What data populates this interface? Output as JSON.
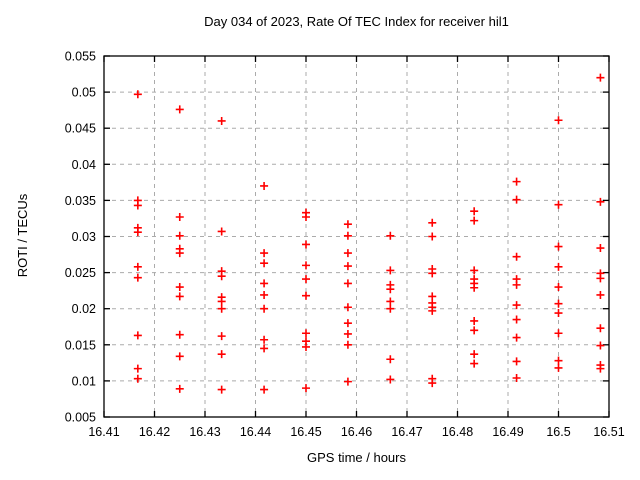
{
  "window": {
    "background": "#ffffff"
  },
  "chart_data": {
    "type": "scatter",
    "title": "Day 034 of 2023, Rate Of TEC Index for receiver hil1",
    "xlabel": "GPS time / hours",
    "ylabel": "ROTI / TECUs",
    "xlim": [
      16.41,
      16.51
    ],
    "ylim": [
      0.005,
      0.055
    ],
    "xticks": [
      16.41,
      16.42,
      16.43,
      16.44,
      16.45,
      16.46,
      16.47,
      16.48,
      16.49,
      16.5,
      16.51
    ],
    "xtick_labels": [
      "16.41",
      "16.42",
      "16.43",
      "16.44",
      "16.45",
      "16.46",
      "16.47",
      "16.48",
      "16.49",
      "16.5",
      "16.51"
    ],
    "yticks": [
      0.005,
      0.01,
      0.015,
      0.02,
      0.025,
      0.03,
      0.035,
      0.04,
      0.045,
      0.05,
      0.055
    ],
    "ytick_labels": [
      "0.005",
      "0.01",
      "0.015",
      "0.02",
      "0.025",
      "0.03",
      "0.035",
      "0.04",
      "0.045",
      "0.05",
      "0.055"
    ],
    "grid": true,
    "grid_style": "dashed",
    "grid_color": "#ababab",
    "border_color": "#000000",
    "legend": "none",
    "marker": {
      "shape": "plus",
      "color": "#ff0000",
      "half_size": 4,
      "stroke_width": 1.6
    },
    "series": [
      {
        "name": "ROTI",
        "points": [
          [
            16.4167,
            0.0497
          ],
          [
            16.4167,
            0.035
          ],
          [
            16.4167,
            0.0343
          ],
          [
            16.4167,
            0.0312
          ],
          [
            16.4167,
            0.0306
          ],
          [
            16.4167,
            0.0258
          ],
          [
            16.4167,
            0.0243
          ],
          [
            16.4167,
            0.0163
          ],
          [
            16.4167,
            0.0117
          ],
          [
            16.4167,
            0.0103
          ],
          [
            16.425,
            0.0476
          ],
          [
            16.425,
            0.0327
          ],
          [
            16.425,
            0.0301
          ],
          [
            16.425,
            0.0283
          ],
          [
            16.425,
            0.0277
          ],
          [
            16.425,
            0.023
          ],
          [
            16.425,
            0.0217
          ],
          [
            16.425,
            0.0164
          ],
          [
            16.425,
            0.0134
          ],
          [
            16.425,
            0.0089
          ],
          [
            16.4333,
            0.046
          ],
          [
            16.4333,
            0.0307
          ],
          [
            16.4333,
            0.0252
          ],
          [
            16.4333,
            0.0245
          ],
          [
            16.4333,
            0.0216
          ],
          [
            16.4333,
            0.021
          ],
          [
            16.4333,
            0.02
          ],
          [
            16.4333,
            0.0162
          ],
          [
            16.4333,
            0.0137
          ],
          [
            16.4333,
            0.0088
          ],
          [
            16.4417,
            0.037
          ],
          [
            16.4417,
            0.0277
          ],
          [
            16.4417,
            0.0263
          ],
          [
            16.4417,
            0.0235
          ],
          [
            16.4417,
            0.0219
          ],
          [
            16.4417,
            0.02
          ],
          [
            16.4417,
            0.0157
          ],
          [
            16.4417,
            0.0145
          ],
          [
            16.4417,
            0.0088
          ],
          [
            16.45,
            0.0333
          ],
          [
            16.45,
            0.0327
          ],
          [
            16.45,
            0.0289
          ],
          [
            16.45,
            0.026
          ],
          [
            16.45,
            0.0241
          ],
          [
            16.45,
            0.0218
          ],
          [
            16.45,
            0.0166
          ],
          [
            16.45,
            0.0155
          ],
          [
            16.45,
            0.0147
          ],
          [
            16.45,
            0.009
          ],
          [
            16.4583,
            0.0317
          ],
          [
            16.4583,
            0.0301
          ],
          [
            16.4583,
            0.0277
          ],
          [
            16.4583,
            0.0259
          ],
          [
            16.4583,
            0.0235
          ],
          [
            16.4583,
            0.0202
          ],
          [
            16.4583,
            0.018
          ],
          [
            16.4583,
            0.0165
          ],
          [
            16.4583,
            0.015
          ],
          [
            16.4583,
            0.0099
          ],
          [
            16.4667,
            0.0301
          ],
          [
            16.4667,
            0.0253
          ],
          [
            16.4667,
            0.0233
          ],
          [
            16.4667,
            0.0227
          ],
          [
            16.4667,
            0.021
          ],
          [
            16.4667,
            0.02
          ],
          [
            16.4667,
            0.013
          ],
          [
            16.4667,
            0.0102
          ],
          [
            16.475,
            0.0319
          ],
          [
            16.475,
            0.03
          ],
          [
            16.475,
            0.0255
          ],
          [
            16.475,
            0.0249
          ],
          [
            16.475,
            0.0217
          ],
          [
            16.475,
            0.0208
          ],
          [
            16.475,
            0.0202
          ],
          [
            16.475,
            0.0197
          ],
          [
            16.475,
            0.0103
          ],
          [
            16.475,
            0.0097
          ],
          [
            16.4833,
            0.0335
          ],
          [
            16.4833,
            0.0322
          ],
          [
            16.4833,
            0.0253
          ],
          [
            16.4833,
            0.0241
          ],
          [
            16.4833,
            0.0235
          ],
          [
            16.4833,
            0.0229
          ],
          [
            16.4833,
            0.0183
          ],
          [
            16.4833,
            0.017
          ],
          [
            16.4833,
            0.0137
          ],
          [
            16.4833,
            0.0124
          ],
          [
            16.4917,
            0.0376
          ],
          [
            16.4917,
            0.0351
          ],
          [
            16.4917,
            0.0272
          ],
          [
            16.4917,
            0.0241
          ],
          [
            16.4917,
            0.0233
          ],
          [
            16.4917,
            0.0205
          ],
          [
            16.4917,
            0.0185
          ],
          [
            16.4917,
            0.016
          ],
          [
            16.4917,
            0.0127
          ],
          [
            16.4917,
            0.0104
          ],
          [
            16.5,
            0.0461
          ],
          [
            16.5,
            0.0344
          ],
          [
            16.5,
            0.0286
          ],
          [
            16.5,
            0.0258
          ],
          [
            16.5,
            0.023
          ],
          [
            16.5,
            0.0207
          ],
          [
            16.5,
            0.0194
          ],
          [
            16.5,
            0.0166
          ],
          [
            16.5,
            0.0128
          ],
          [
            16.5,
            0.0118
          ],
          [
            16.5083,
            0.052
          ],
          [
            16.5083,
            0.0348
          ],
          [
            16.5083,
            0.0284
          ],
          [
            16.5083,
            0.0249
          ],
          [
            16.5083,
            0.0242
          ],
          [
            16.5083,
            0.0219
          ],
          [
            16.5083,
            0.0173
          ],
          [
            16.5083,
            0.0149
          ],
          [
            16.5083,
            0.0122
          ],
          [
            16.5083,
            0.0117
          ]
        ]
      }
    ]
  }
}
